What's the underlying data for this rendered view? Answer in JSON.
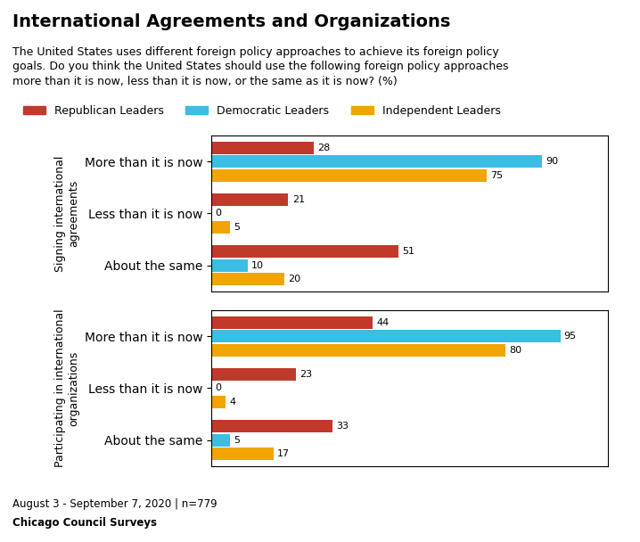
{
  "title": "International Agreements and Organizations",
  "subtitle": "The United States uses different foreign policy approaches to achieve its foreign policy\ngoals. Do you think the United States should use the following foreign policy approaches\nmore than it is now, less than it is now, or the same as it is now? (%)",
  "annotations": [
    "August 3 - September 7, 2020 | n=779",
    "Chicago Council Surveys"
  ],
  "legend": "upper left",
  "chart_data": [
    {
      "type": "bar",
      "orientation": "horizontal",
      "ylabel": "Signing international\nagreements",
      "categories": [
        "More than it is now",
        "Less than it is now",
        "About the same"
      ],
      "series": [
        {
          "name": "Republican Leaders",
          "color": "#c0392b",
          "values": [
            28,
            21,
            51
          ]
        },
        {
          "name": "Democratic Leaders",
          "color": "#3bbde4",
          "values": [
            90,
            0,
            10
          ]
        },
        {
          "name": "Independent Leaders",
          "color": "#f0a500",
          "values": [
            75,
            5,
            20
          ]
        }
      ],
      "xlim": [
        0,
        108
      ],
      "tick_labels": "y",
      "data_labels": true,
      "grid": false
    },
    {
      "type": "bar",
      "orientation": "horizontal",
      "ylabel": "Participating in international\norganizations",
      "categories": [
        "More than it is now",
        "Less than it is now",
        "About the same"
      ],
      "series": [
        {
          "name": "Republican Leaders",
          "color": "#c0392b",
          "values": [
            44,
            23,
            33
          ]
        },
        {
          "name": "Democratic Leaders",
          "color": "#3bbde4",
          "values": [
            95,
            0,
            5
          ]
        },
        {
          "name": "Independent Leaders",
          "color": "#f0a500",
          "values": [
            80,
            4,
            17
          ]
        }
      ],
      "xlim": [
        0,
        108
      ],
      "tick_labels": "y",
      "data_labels": true,
      "grid": false
    }
  ]
}
